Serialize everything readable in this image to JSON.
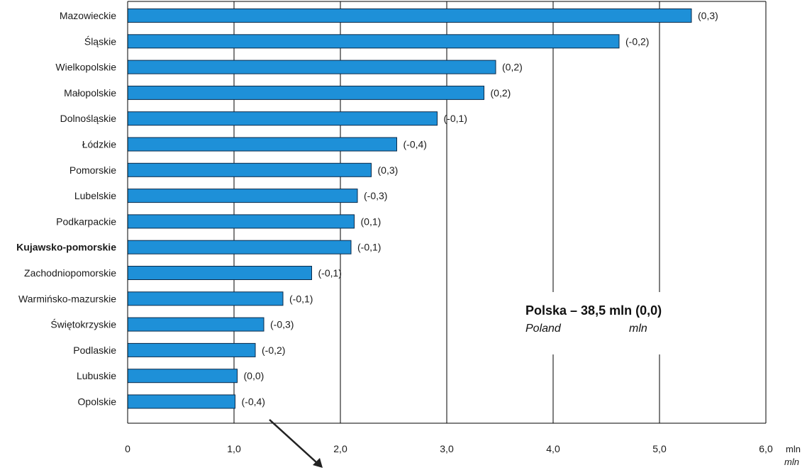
{
  "chart_data": {
    "type": "bar",
    "orientation": "horizontal",
    "categories": [
      "Mazowieckie",
      "Śląskie",
      "Wielkopolskie",
      "Małopolskie",
      "Dolnośląskie",
      "Łódzkie",
      "Pomorskie",
      "Lubelskie",
      "Podkarpackie",
      "Kujawsko-pomorskie",
      "Zachodniopomorskie",
      "Warmińsko-mazurskie",
      "Świętokrzyskie",
      "Podlaskie",
      "Lubuskie",
      "Opolskie"
    ],
    "highlighted_category": "Kujawsko-pomorskie",
    "values": [
      5.3,
      4.62,
      3.46,
      3.35,
      2.91,
      2.53,
      2.29,
      2.16,
      2.13,
      2.1,
      1.73,
      1.46,
      1.28,
      1.2,
      1.03,
      1.01
    ],
    "data_labels": [
      "(0,3)",
      "(-0,2)",
      "(0,2)",
      "(0,2)",
      "(-0,1)",
      "(-0,4)",
      "(0,3)",
      "(-0,3)",
      "(0,1)",
      "(-0,1)",
      "(-0,1)",
      "(-0,1)",
      "(-0,3)",
      "(-0,2)",
      "(0,0)",
      "(-0,4)"
    ],
    "xlim": [
      0,
      6
    ],
    "xticks": [
      0,
      1,
      2,
      3,
      4,
      5,
      6
    ],
    "xtick_labels": [
      "0",
      "1,0",
      "2,0",
      "3,0",
      "4,0",
      "5,0",
      "6,0"
    ],
    "xlabel": "mln",
    "xlabel_en": "mln",
    "grid": "vertical",
    "bar_color": "#1e90d8",
    "annotation": {
      "main": "Polska – 38,5 mln (0,0)",
      "sub_left": "Poland",
      "sub_right": "mln"
    }
  }
}
